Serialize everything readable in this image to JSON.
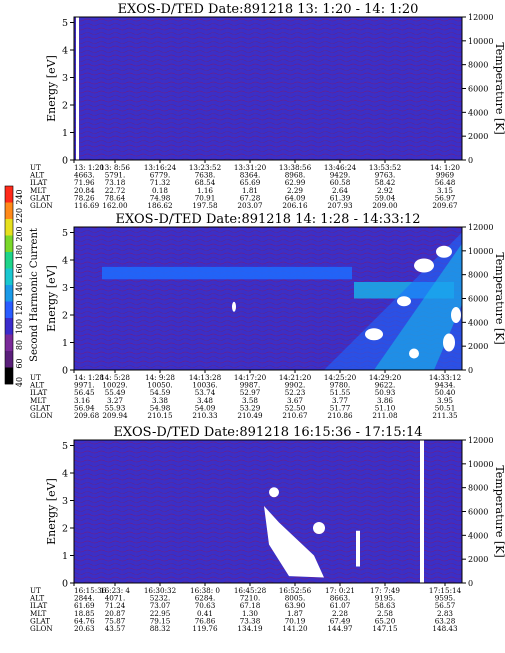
{
  "colors": {
    "background_plasma": "#3a2fc8",
    "contour_dark": "#6a1f8a",
    "flux_high": "#1e6cff",
    "flux_cyan": "#19b7e8",
    "saturated": "#ffffff"
  },
  "colorbar": {
    "label": "Second Harmonic Current",
    "ticks": [
      "40",
      "60",
      "80",
      "100",
      "120",
      "140",
      "160",
      "180",
      "200",
      "220",
      "240"
    ],
    "colors": [
      "#000000",
      "#5a1f7a",
      "#7a2a9a",
      "#3b2ccc",
      "#2a5cff",
      "#1a9ae8",
      "#19c7d0",
      "#1ed48a",
      "#7ad82a",
      "#e6e01e",
      "#ff8a1a",
      "#ff2a1a"
    ]
  },
  "ephem_labels": [
    "UT",
    "ALT",
    "ILAT",
    "MLT",
    "GLAT",
    "GLON"
  ],
  "chart_data": [
    {
      "type": "heatmap",
      "title": "EXOS-D/TED    Date:891218   13: 1:20 - 14: 1:20",
      "ylabel": "Energy [eV]",
      "y2label": "Temperature [K]",
      "yticks": [
        "0",
        "1",
        "2",
        "3",
        "4",
        "5"
      ],
      "y2ticks": [
        "0",
        "2000",
        "4000",
        "6000",
        "8000",
        "10000",
        "12000"
      ],
      "ylim": [
        0,
        5.2
      ],
      "y2lim": [
        0,
        12000
      ],
      "ephemeris": {
        "UT": [
          "13: 1:20",
          "13: 8:56",
          "13:16:24",
          "13:23:52",
          "13:31:20",
          "13:38:56",
          "13:46:24",
          "13:53:52",
          "14: 1:20"
        ],
        "ALT": [
          "4663.",
          "5791.",
          "6779.",
          "7638.",
          "8364.",
          "8968.",
          "9429.",
          "9763.",
          "9969"
        ],
        "ILAT": [
          "71.96",
          "73.18",
          "71.32",
          "68.54",
          "65.69",
          "62.99",
          "60.58",
          "58.42",
          "56.48"
        ],
        "MLT": [
          "20.84",
          "22.72",
          "0.18",
          "1.16",
          "1.81",
          "2.29",
          "2.64",
          "2.92",
          "3.15"
        ],
        "GLAT": [
          "78.26",
          "78.64",
          "74.98",
          "70.91",
          "67.28",
          "64.09",
          "61.39",
          "59.04",
          "56.97"
        ],
        "GLON": [
          "116.69",
          "162.00",
          "186.62",
          "197.58",
          "203.07",
          "206.16",
          "207.93",
          "209.00",
          "209.67"
        ]
      }
    },
    {
      "type": "heatmap",
      "title": "EXOS-D/TED    Date:891218   14: 1:28 - 14:33:12",
      "ylabel": "Energy [eV]",
      "y2label": "Temperature [K]",
      "yticks": [
        "0",
        "1",
        "2",
        "3",
        "4",
        "5"
      ],
      "y2ticks": [
        "0",
        "2000",
        "4000",
        "6000",
        "8000",
        "10000",
        "12000"
      ],
      "ylim": [
        0,
        5.2
      ],
      "y2lim": [
        0,
        12000
      ],
      "ephemeris": {
        "UT": [
          "14: 1:28",
          "14: 5:28",
          "14: 9:28",
          "14:13:28",
          "14:17:20",
          "14:21:20",
          "14:25:20",
          "14:29:20",
          "14:33:12"
        ],
        "ALT": [
          "9971.",
          "10029.",
          "10050.",
          "10036.",
          "9987.",
          "9902.",
          "9780.",
          "9622.",
          "9434."
        ],
        "ILAT": [
          "56.45",
          "55.49",
          "54.59",
          "53.74",
          "52.97",
          "52.23",
          "51.55",
          "50.93",
          "50.40"
        ],
        "MLT": [
          "3.16",
          "3.27",
          "3.38",
          "3.48",
          "3.58",
          "3.67",
          "3.77",
          "3.86",
          "3.95"
        ],
        "GLAT": [
          "56.94",
          "55.93",
          "54.98",
          "54.09",
          "53.29",
          "52.50",
          "51.77",
          "51.10",
          "50.51"
        ],
        "GLON": [
          "209.68",
          "209.94",
          "210.15",
          "210.33",
          "210.49",
          "210.67",
          "210.86",
          "211.08",
          "211.35"
        ]
      }
    },
    {
      "type": "heatmap",
      "title": "EXOS-D/TED    Date:891218   16:15:36 - 17:15:14",
      "ylabel": "Energy [eV]",
      "y2label": "Temperature [K]",
      "yticks": [
        "0",
        "1",
        "2",
        "3",
        "4",
        "5"
      ],
      "y2ticks": [
        "0",
        "2000",
        "4000",
        "6000",
        "8000",
        "10000",
        "12000"
      ],
      "ylim": [
        0,
        5.2
      ],
      "y2lim": [
        0,
        12000
      ],
      "ephemeris": {
        "UT": [
          "16:15:36",
          "16:23: 4",
          "16:30:32",
          "16:38: 0",
          "16:45:28",
          "16:52:56",
          "17: 0:21",
          "17: 7:49",
          "17:15:14"
        ],
        "ALT": [
          "2844.",
          "4071.",
          "5232.",
          "6284.",
          "7210.",
          "8005.",
          "8663.",
          "9195.",
          "9595."
        ],
        "ILAT": [
          "61.69",
          "71.24",
          "73.07",
          "70.63",
          "67.18",
          "63.90",
          "61.07",
          "58.63",
          "56.57"
        ],
        "MLT": [
          "18.85",
          "20.87",
          "22.95",
          "0.41",
          "1.30",
          "1.87",
          "2.28",
          "2.58",
          "2.83"
        ],
        "GLAT": [
          "64.76",
          "75.87",
          "79.15",
          "76.86",
          "73.38",
          "70.19",
          "67.49",
          "65.20",
          "63.28"
        ],
        "GLON": [
          "20.63",
          "43.57",
          "88.32",
          "119.76",
          "134.19",
          "141.20",
          "144.97",
          "147.15",
          "148.43"
        ]
      }
    }
  ]
}
